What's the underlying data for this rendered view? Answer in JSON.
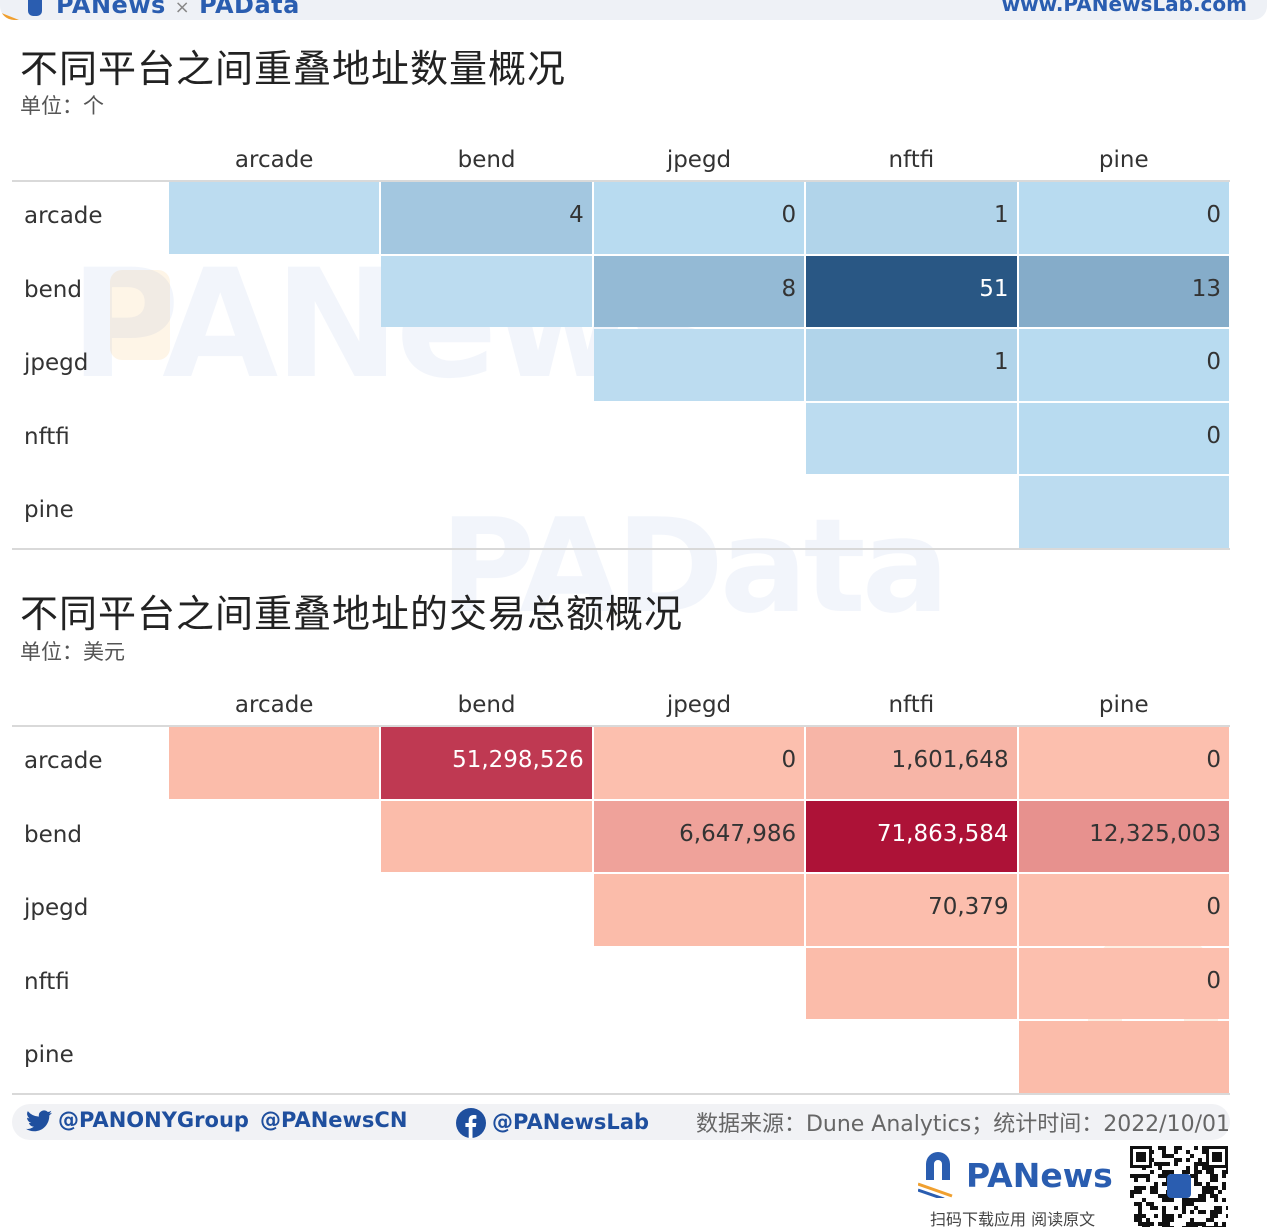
{
  "header": {
    "brand_left": "PANews",
    "brand_x": "×",
    "brand_right": "PAData",
    "site": "www.PANewsLab.com"
  },
  "watermarks": {
    "top": "PANews",
    "middle": "PAData"
  },
  "chart_data": [
    {
      "type": "heatmap",
      "title": "不同平台之间重叠地址数量概况",
      "subtitle": "单位：个",
      "columns": [
        "arcade",
        "bend",
        "jpegd",
        "nftfi",
        "pine"
      ],
      "rows": [
        "arcade",
        "bend",
        "jpegd",
        "nftfi",
        "pine"
      ],
      "cells": [
        {
          "row": 0,
          "col": 0,
          "value": null,
          "label": ""
        },
        {
          "row": 0,
          "col": 1,
          "value": 4,
          "label": "4"
        },
        {
          "row": 0,
          "col": 2,
          "value": 0,
          "label": "0"
        },
        {
          "row": 0,
          "col": 3,
          "value": 1,
          "label": "1"
        },
        {
          "row": 0,
          "col": 4,
          "value": 0,
          "label": "0"
        },
        {
          "row": 1,
          "col": 1,
          "value": null,
          "label": ""
        },
        {
          "row": 1,
          "col": 2,
          "value": 8,
          "label": "8"
        },
        {
          "row": 1,
          "col": 3,
          "value": 51,
          "label": "51"
        },
        {
          "row": 1,
          "col": 4,
          "value": 13,
          "label": "13"
        },
        {
          "row": 2,
          "col": 2,
          "value": null,
          "label": ""
        },
        {
          "row": 2,
          "col": 3,
          "value": 1,
          "label": "1"
        },
        {
          "row": 2,
          "col": 4,
          "value": 0,
          "label": "0"
        },
        {
          "row": 3,
          "col": 3,
          "value": null,
          "label": ""
        },
        {
          "row": 3,
          "col": 4,
          "value": 0,
          "label": "0"
        },
        {
          "row": 4,
          "col": 4,
          "value": null,
          "label": ""
        }
      ],
      "colors": {
        "empty": "#bcdcf0",
        "low": "#b8dbf0",
        "high": "#295784",
        "text_light": "#ffffff",
        "text_dark": "#333333"
      },
      "max": 51
    },
    {
      "type": "heatmap",
      "title": "不同平台之间重叠地址的交易总额概况",
      "subtitle": "单位：美元",
      "columns": [
        "arcade",
        "bend",
        "jpegd",
        "nftfi",
        "pine"
      ],
      "rows": [
        "arcade",
        "bend",
        "jpegd",
        "nftfi",
        "pine"
      ],
      "cells": [
        {
          "row": 0,
          "col": 0,
          "value": null,
          "label": ""
        },
        {
          "row": 0,
          "col": 1,
          "value": 51298526,
          "label": "51,298,526"
        },
        {
          "row": 0,
          "col": 2,
          "value": 0,
          "label": "0"
        },
        {
          "row": 0,
          "col": 3,
          "value": 1601648,
          "label": "1,601,648"
        },
        {
          "row": 0,
          "col": 4,
          "value": 0,
          "label": "0"
        },
        {
          "row": 1,
          "col": 1,
          "value": null,
          "label": ""
        },
        {
          "row": 1,
          "col": 2,
          "value": 6647986,
          "label": "6,647,986"
        },
        {
          "row": 1,
          "col": 3,
          "value": 71863584,
          "label": "71,863,584"
        },
        {
          "row": 1,
          "col": 4,
          "value": 12325003,
          "label": "12,325,003"
        },
        {
          "row": 2,
          "col": 2,
          "value": null,
          "label": ""
        },
        {
          "row": 2,
          "col": 3,
          "value": 70379,
          "label": "70,379"
        },
        {
          "row": 2,
          "col": 4,
          "value": 0,
          "label": "0"
        },
        {
          "row": 3,
          "col": 3,
          "value": null,
          "label": ""
        },
        {
          "row": 3,
          "col": 4,
          "value": 0,
          "label": "0"
        },
        {
          "row": 4,
          "col": 4,
          "value": null,
          "label": ""
        }
      ],
      "colors": {
        "empty": "#fbbcaa",
        "low": "#fcbfae",
        "high": "#ad1237",
        "text_light": "#ffffff",
        "text_dark": "#333333"
      },
      "max": 71863584
    }
  ],
  "footer": {
    "twitter": "@PANONYGroup",
    "weibo": "@PANewsCN",
    "facebook": "@PANewsLab",
    "source": "数据来源：Dune Analytics；统计时间：2022/10/01",
    "brand": "PANews",
    "caption": "扫码下载应用 阅读原文",
    "icons": [
      "twitter-icon",
      "facebook-icon",
      "panews-logo-icon",
      "qr-code-icon"
    ]
  }
}
